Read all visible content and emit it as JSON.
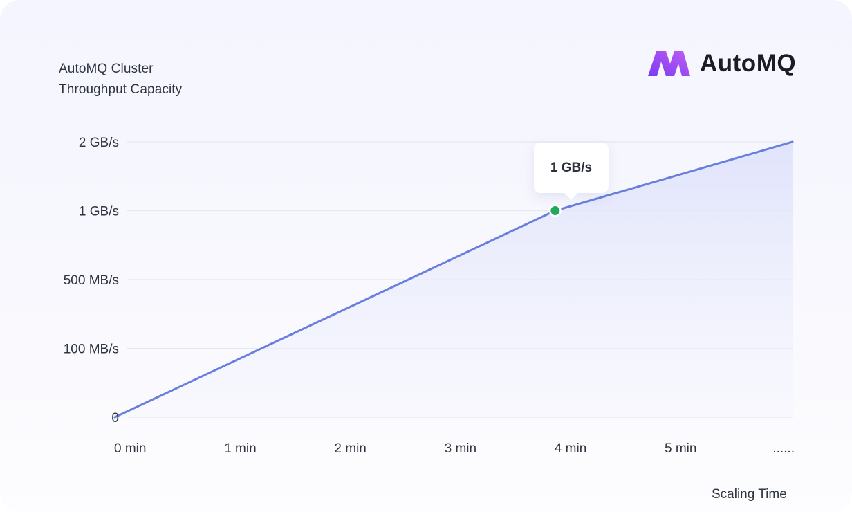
{
  "title": {
    "line1": "AutoMQ Cluster",
    "line2": "Throughput Capacity"
  },
  "logo": {
    "text": "AutoMQ",
    "mark_color_start": "#7a3cf0",
    "mark_color_end": "#c05cf6"
  },
  "tooltip": {
    "label": "1 GB/s"
  },
  "colors": {
    "line": "#6a7fdd",
    "area": "#e3e6fb",
    "point": "#21a95b",
    "grid": "#e6e8ef",
    "text": "#2f3441"
  },
  "chart_data": {
    "type": "line",
    "title": "AutoMQ Cluster Throughput Capacity",
    "xlabel": "Scaling Time",
    "ylabel": "",
    "x_ticks": [
      "0 min",
      "1 min",
      "2 min",
      "3 min",
      "4 min",
      "5 min",
      "......"
    ],
    "y_ticks": [
      "0",
      "100 MB/s",
      "500 MB/s",
      "1 GB/s",
      "2 GB/s"
    ],
    "y_scale": "categorical-level",
    "series": [
      {
        "x": [
          0,
          4,
          6
        ],
        "y_level": [
          0,
          3,
          4
        ],
        "values": [
          "0",
          "1 GB/s",
          "2 GB/s"
        ]
      }
    ],
    "highlight": {
      "x": 4,
      "y_level": 3,
      "label": "1 GB/s"
    },
    "grid": true,
    "legend": "none"
  }
}
